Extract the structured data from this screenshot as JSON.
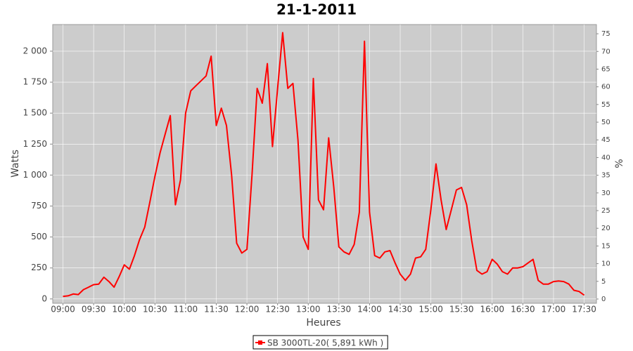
{
  "chart_data": {
    "type": "line",
    "title": "21-1-2011",
    "x_label": "Heures",
    "y_label": "Watts",
    "y2_label": "%",
    "x": [
      "09:00",
      "09:05",
      "09:10",
      "09:15",
      "09:20",
      "09:25",
      "09:30",
      "09:35",
      "09:40",
      "09:45",
      "09:50",
      "09:55",
      "10:00",
      "10:05",
      "10:10",
      "10:15",
      "10:20",
      "10:25",
      "10:30",
      "10:35",
      "10:40",
      "10:45",
      "10:50",
      "10:55",
      "11:00",
      "11:05",
      "11:10",
      "11:15",
      "11:20",
      "11:25",
      "11:30",
      "11:35",
      "11:40",
      "11:45",
      "11:50",
      "11:55",
      "12:00",
      "12:05",
      "12:10",
      "12:15",
      "12:20",
      "12:25",
      "12:30",
      "12:35",
      "12:40",
      "12:45",
      "12:50",
      "12:55",
      "13:00",
      "13:05",
      "13:10",
      "13:15",
      "13:20",
      "13:25",
      "13:30",
      "13:35",
      "13:40",
      "13:45",
      "13:50",
      "13:55",
      "14:00",
      "14:05",
      "14:10",
      "14:15",
      "14:20",
      "14:25",
      "14:30",
      "14:35",
      "14:40",
      "14:45",
      "14:50",
      "14:55",
      "15:00",
      "15:05",
      "15:10",
      "15:15",
      "15:20",
      "15:25",
      "15:30",
      "15:35",
      "15:40",
      "15:45",
      "15:50",
      "15:55",
      "16:00",
      "16:05",
      "16:10",
      "16:15",
      "16:20",
      "16:25",
      "16:30",
      "16:35",
      "16:40",
      "16:45",
      "16:50",
      "16:55",
      "17:00",
      "17:05",
      "17:10",
      "17:15",
      "17:20",
      "17:25",
      "17:30"
    ],
    "series": [
      {
        "name": "SB 3000TL-20( 5,891 kWh )",
        "color": "#ff0000",
        "values": [
          20,
          25,
          40,
          35,
          75,
          95,
          115,
          120,
          175,
          140,
          95,
          180,
          275,
          240,
          350,
          480,
          580,
          780,
          990,
          1180,
          1330,
          1480,
          760,
          960,
          1500,
          1680,
          1720,
          1760,
          1800,
          1960,
          1400,
          1540,
          1400,
          1000,
          450,
          370,
          400,
          1000,
          1700,
          1580,
          1900,
          1230,
          1700,
          2150,
          1700,
          1740,
          1280,
          500,
          400,
          1780,
          800,
          720,
          1300,
          900,
          420,
          380,
          360,
          440,
          700,
          2080,
          700,
          350,
          330,
          380,
          390,
          290,
          200,
          150,
          200,
          330,
          340,
          400,
          720,
          1090,
          800,
          560,
          720,
          880,
          900,
          760,
          470,
          230,
          200,
          220,
          320,
          280,
          220,
          200,
          250,
          250,
          260,
          290,
          320,
          150,
          120,
          120,
          140,
          145,
          140,
          120,
          70,
          60,
          30
        ]
      }
    ],
    "xlim": [
      "08:50",
      "17:42"
    ],
    "xticks": [
      "09:00",
      "09:30",
      "10:00",
      "10:30",
      "11:00",
      "11:30",
      "12:00",
      "12:30",
      "13:00",
      "13:30",
      "14:00",
      "14:30",
      "15:00",
      "15:30",
      "16:00",
      "16:30",
      "17:00",
      "17:30"
    ],
    "ylim": [
      -35,
      2215
    ],
    "yticks": [
      0,
      250,
      500,
      750,
      {
        "value": 1000,
        "label": "1 000"
      },
      {
        "value": 1250,
        "label": "1 250"
      },
      {
        "value": 1500,
        "label": "1 500"
      },
      {
        "value": 1750,
        "label": "1 750"
      },
      {
        "value": 2000,
        "label": "2 000"
      }
    ],
    "y2lim": [
      -1.2,
      77.6
    ],
    "y2ticks": [
      0,
      5,
      10,
      15,
      20,
      25,
      30,
      35,
      40,
      45,
      50,
      55,
      60,
      65,
      70,
      75
    ],
    "grid": true
  }
}
